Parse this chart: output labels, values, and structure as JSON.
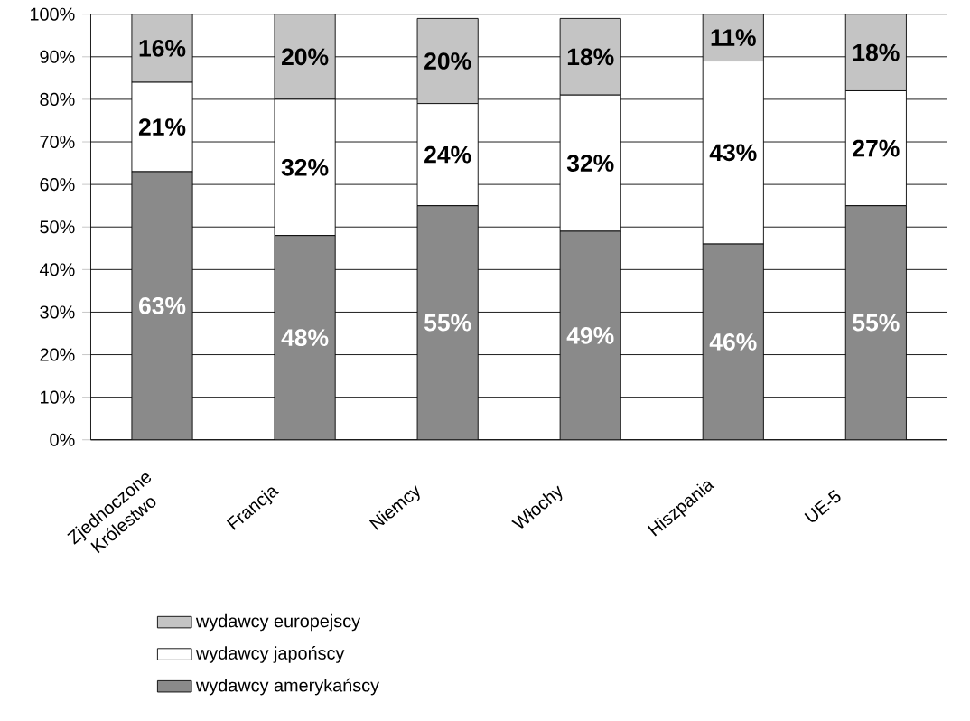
{
  "chart_data": {
    "type": "bar",
    "stacked": true,
    "categories": [
      "Zjednoczone Królestwo",
      "Francja",
      "Niemcy",
      "Włochy",
      "Hiszpania",
      "UE-5"
    ],
    "series": [
      {
        "name": "wydawcy amerykańscy",
        "color": "#8a8a8a",
        "values": [
          63,
          48,
          55,
          49,
          46,
          55
        ],
        "value_labels": [
          "63%",
          "48%",
          "55%",
          "49%",
          "46%",
          "55%"
        ]
      },
      {
        "name": "wydawcy japońscy",
        "color": "#ffffff",
        "values": [
          21,
          32,
          24,
          32,
          43,
          27
        ],
        "value_labels": [
          "21%",
          "32%",
          "24%",
          "32%",
          "43%",
          "27%"
        ]
      },
      {
        "name": "wydawcy europejscy",
        "color": "#c4c4c4",
        "values": [
          16,
          20,
          20,
          18,
          11,
          18
        ],
        "value_labels": [
          "16%",
          "20%",
          "20%",
          "18%",
          "11%",
          "18%"
        ]
      }
    ],
    "ylim": [
      0,
      100
    ],
    "yticks": [
      {
        "value": 0,
        "label": "0%"
      },
      {
        "value": 10,
        "label": "10%"
      },
      {
        "value": 20,
        "label": "20%"
      },
      {
        "value": 30,
        "label": "30%"
      },
      {
        "value": 40,
        "label": "40%"
      },
      {
        "value": 50,
        "label": "50%"
      },
      {
        "value": 60,
        "label": "60%"
      },
      {
        "value": 70,
        "label": "70%"
      },
      {
        "value": 80,
        "label": "80%"
      },
      {
        "value": 90,
        "label": "90%"
      },
      {
        "value": 100,
        "label": "100%"
      }
    ],
    "grid": "y",
    "legend": "bottom"
  }
}
